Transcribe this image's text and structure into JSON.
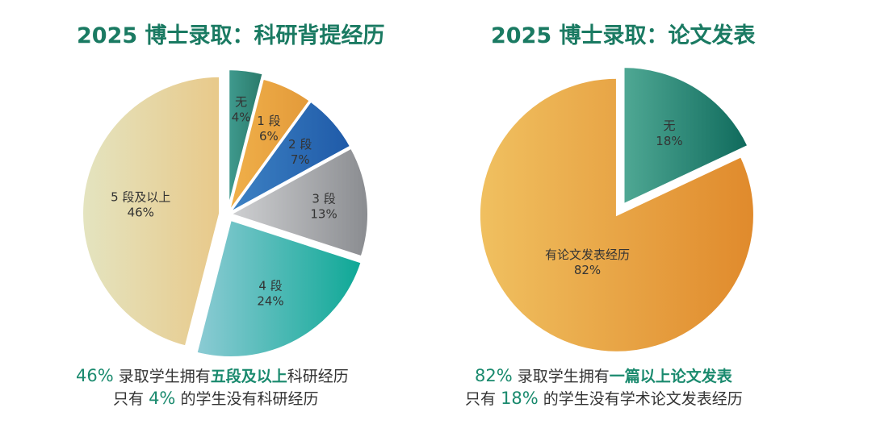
{
  "chart_data": [
    {
      "type": "pie",
      "title": "2025 博士录取：科研背提经历",
      "slices": [
        {
          "label": "无",
          "value": 4,
          "display": "4%"
        },
        {
          "label": "1 段",
          "value": 6,
          "display": "6%"
        },
        {
          "label": "2 段",
          "value": 7,
          "display": "7%"
        },
        {
          "label": "3 段",
          "value": 13,
          "display": "13%"
        },
        {
          "label": "4 段",
          "value": 24,
          "display": "24%"
        },
        {
          "label": "5 段及以上",
          "value": 46,
          "display": "46%"
        }
      ]
    },
    {
      "type": "pie",
      "title": "2025 博士录取：论文发表",
      "slices": [
        {
          "label": "无",
          "value": 18,
          "display": "18%"
        },
        {
          "label": "有论文发表经历",
          "value": 82,
          "display": "82%"
        }
      ]
    }
  ],
  "captions": {
    "left": {
      "line1_pct": "46%",
      "line1_a": "录取学生拥有",
      "line1_hl": "五段及以上",
      "line1_b": "科研经历",
      "line2_a": "只有",
      "line2_pct": "4%",
      "line2_b": "的学生没有科研经历"
    },
    "right": {
      "line1_pct": "82%",
      "line1_a": "录取学生拥有",
      "line1_hl": "一篇以上论文发表",
      "line2_a": "只有",
      "line2_pct": "18%",
      "line2_b": "的学生没有学术论文发表经历"
    }
  },
  "colors": {
    "title": "#1a7a62",
    "highlight": "#1a8a6e"
  }
}
